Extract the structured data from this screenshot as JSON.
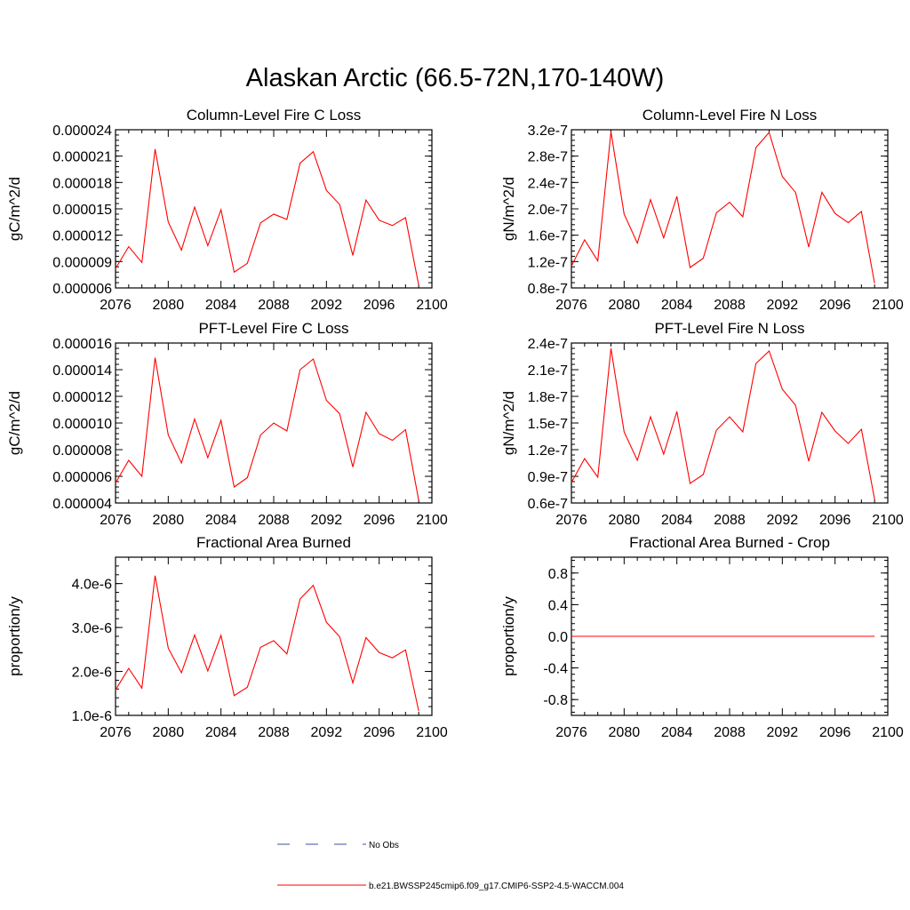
{
  "figure": {
    "title": "Alaskan Arctic (66.5-72N,170-140W)"
  },
  "colors": {
    "model": "#ff0000",
    "obs": "#3b4fa0"
  },
  "legend": {
    "entries": [
      {
        "label": "No Obs",
        "style": "dashed"
      },
      {
        "label": "b.e21.BWSSP245cmip6.f09_g17.CMIP6-SSP2-4.5-WACCM.004",
        "style": "solid"
      }
    ]
  },
  "chart_data": [
    {
      "type": "line",
      "title": "Column-Level Fire C Loss",
      "ylabel": "gC/m^2/d",
      "xlim": [
        2076,
        2100
      ],
      "ylim": [
        6e-06,
        2.4e-05
      ],
      "xticks": [
        "2076",
        "2080",
        "2084",
        "2088",
        "2092",
        "2096",
        "2100"
      ],
      "yticks": [
        6e-06,
        9e-06,
        1.2e-05,
        1.5e-05,
        1.8e-05,
        2.1e-05,
        2.4e-05
      ],
      "yticklabels": [
        "0.000006",
        "0.000009",
        "0.000012",
        "0.000015",
        "0.000018",
        "0.000021",
        "0.000024"
      ],
      "x": [
        2076,
        2077,
        2078,
        2079,
        2080,
        2081,
        2082,
        2083,
        2084,
        2085,
        2086,
        2087,
        2088,
        2089,
        2090,
        2091,
        2092,
        2093,
        2094,
        2095,
        2096,
        2097,
        2098,
        2099
      ],
      "series": [
        {
          "values": [
            8.2e-06,
            1.07e-05,
            8.9e-06,
            2.18e-05,
            1.35e-05,
            1.03e-05,
            1.52e-05,
            1.08e-05,
            1.49e-05,
            7.8e-06,
            8.8e-06,
            1.34e-05,
            1.44e-05,
            1.38e-05,
            2.02e-05,
            2.15e-05,
            1.71e-05,
            1.55e-05,
            9.7e-06,
            1.6e-05,
            1.37e-05,
            1.31e-05,
            1.4e-05,
            6.3e-06
          ]
        }
      ]
    },
    {
      "type": "line",
      "title": "Column-Level Fire N Loss",
      "ylabel": "gN/m^2/d",
      "xlim": [
        2076,
        2100
      ],
      "ylim": [
        8e-08,
        3.2e-07
      ],
      "xticks": [
        "2076",
        "2080",
        "2084",
        "2088",
        "2092",
        "2096",
        "2100"
      ],
      "yticks": [
        8e-08,
        1.2e-07,
        1.6e-07,
        2e-07,
        2.4e-07,
        2.8e-07,
        3.2e-07
      ],
      "yticklabels": [
        "0.8e-7",
        "1.2e-7",
        "1.6e-7",
        "2.0e-7",
        "2.4e-7",
        "2.8e-7",
        "3.2e-7"
      ],
      "x": [
        2076,
        2077,
        2078,
        2079,
        2080,
        2081,
        2082,
        2083,
        2084,
        2085,
        2086,
        2087,
        2088,
        2089,
        2090,
        2091,
        2092,
        2093,
        2094,
        2095,
        2096,
        2097,
        2098,
        2099
      ],
      "series": [
        {
          "values": [
            1.13e-07,
            1.53e-07,
            1.21e-07,
            3.17e-07,
            1.92e-07,
            1.48e-07,
            2.14e-07,
            1.56e-07,
            2.19e-07,
            1.11e-07,
            1.25e-07,
            1.94e-07,
            2.1e-07,
            1.88e-07,
            2.93e-07,
            3.16e-07,
            2.49e-07,
            2.25e-07,
            1.42e-07,
            2.25e-07,
            1.93e-07,
            1.79e-07,
            1.96e-07,
            8.7e-08
          ]
        }
      ]
    },
    {
      "type": "line",
      "title": "PFT-Level Fire C Loss",
      "ylabel": "gC/m^2/d",
      "xlim": [
        2076,
        2100
      ],
      "ylim": [
        4e-06,
        1.6e-05
      ],
      "xticks": [
        "2076",
        "2080",
        "2084",
        "2088",
        "2092",
        "2096",
        "2100"
      ],
      "yticks": [
        4e-06,
        6e-06,
        8e-06,
        1e-05,
        1.2e-05,
        1.4e-05,
        1.6e-05
      ],
      "yticklabels": [
        "0.000004",
        "0.000006",
        "0.000008",
        "0.000010",
        "0.000012",
        "0.000014",
        "0.000016"
      ],
      "x": [
        2076,
        2077,
        2078,
        2079,
        2080,
        2081,
        2082,
        2083,
        2084,
        2085,
        2086,
        2087,
        2088,
        2089,
        2090,
        2091,
        2092,
        2093,
        2094,
        2095,
        2096,
        2097,
        2098,
        2099
      ],
      "series": [
        {
          "values": [
            5.5e-06,
            7.2e-06,
            6e-06,
            1.49e-05,
            9.1e-06,
            7e-06,
            1.03e-05,
            7.4e-06,
            1.02e-05,
            5.2e-06,
            5.9e-06,
            9.1e-06,
            1e-05,
            9.4e-06,
            1.4e-05,
            1.48e-05,
            1.17e-05,
            1.07e-05,
            6.7e-06,
            1.08e-05,
            9.2e-06,
            8.7e-06,
            9.5e-06,
            4.2e-06
          ]
        }
      ]
    },
    {
      "type": "line",
      "title": "PFT-Level Fire N Loss",
      "ylabel": "gN/m^2/d",
      "xlim": [
        2076,
        2100
      ],
      "ylim": [
        6e-08,
        2.4e-07
      ],
      "xticks": [
        "2076",
        "2080",
        "2084",
        "2088",
        "2092",
        "2096",
        "2100"
      ],
      "yticks": [
        6e-08,
        9e-08,
        1.2e-07,
        1.5e-07,
        1.8e-07,
        2.1e-07,
        2.4e-07
      ],
      "yticklabels": [
        "0.6e-7",
        "0.9e-7",
        "1.2e-7",
        "1.5e-7",
        "1.8e-7",
        "2.1e-7",
        "2.4e-7"
      ],
      "x": [
        2076,
        2077,
        2078,
        2079,
        2080,
        2081,
        2082,
        2083,
        2084,
        2085,
        2086,
        2087,
        2088,
        2089,
        2090,
        2091,
        2092,
        2093,
        2094,
        2095,
        2096,
        2097,
        2098,
        2099
      ],
      "series": [
        {
          "values": [
            8.3e-08,
            1.1e-07,
            8.9e-08,
            2.34e-07,
            1.4e-07,
            1.08e-07,
            1.57e-07,
            1.15e-07,
            1.63e-07,
            8.2e-08,
            9.2e-08,
            1.42e-07,
            1.57e-07,
            1.4e-07,
            2.17e-07,
            2.31e-07,
            1.88e-07,
            1.7e-07,
            1.07e-07,
            1.62e-07,
            1.41e-07,
            1.27e-07,
            1.43e-07,
            6.4e-08
          ]
        }
      ]
    },
    {
      "type": "line",
      "title": "Fractional Area Burned",
      "ylabel": "proportion/y",
      "xlim": [
        2076,
        2100
      ],
      "ylim": [
        1e-06,
        4.6e-06
      ],
      "xticks": [
        "2076",
        "2080",
        "2084",
        "2088",
        "2092",
        "2096",
        "2100"
      ],
      "yticks": [
        1e-06,
        2e-06,
        3e-06,
        4e-06
      ],
      "yticklabels": [
        "1.0e-6",
        "2.0e-6",
        "3.0e-6",
        "4.0e-6"
      ],
      "x": [
        2076,
        2077,
        2078,
        2079,
        2080,
        2081,
        2082,
        2083,
        2084,
        2085,
        2086,
        2087,
        2088,
        2089,
        2090,
        2091,
        2092,
        2093,
        2094,
        2095,
        2096,
        2097,
        2098,
        2099
      ],
      "series": [
        {
          "values": [
            1.58e-06,
            2.07e-06,
            1.62e-06,
            4.18e-06,
            2.53e-06,
            1.97e-06,
            2.83e-06,
            2.01e-06,
            2.82e-06,
            1.45e-06,
            1.64e-06,
            2.55e-06,
            2.7e-06,
            2.4e-06,
            3.65e-06,
            3.96e-06,
            3.12e-06,
            2.79e-06,
            1.74e-06,
            2.77e-06,
            2.43e-06,
            2.31e-06,
            2.49e-06,
            1.1e-06
          ]
        }
      ]
    },
    {
      "type": "line",
      "title": "Fractional Area Burned - Crop",
      "ylabel": "proportion/y",
      "xlim": [
        2076,
        2100
      ],
      "ylim": [
        -1.0,
        1.0
      ],
      "xticks": [
        "2076",
        "2080",
        "2084",
        "2088",
        "2092",
        "2096",
        "2100"
      ],
      "yticks": [
        -0.8,
        -0.4,
        0.0,
        0.4,
        0.8
      ],
      "yticklabels": [
        "-0.8",
        "-0.4",
        "0.0",
        "0.4",
        "0.8"
      ],
      "x": [
        2076,
        2077,
        2078,
        2079,
        2080,
        2081,
        2082,
        2083,
        2084,
        2085,
        2086,
        2087,
        2088,
        2089,
        2090,
        2091,
        2092,
        2093,
        2094,
        2095,
        2096,
        2097,
        2098,
        2099
      ],
      "series": [
        {
          "values": [
            0,
            0,
            0,
            0,
            0,
            0,
            0,
            0,
            0,
            0,
            0,
            0,
            0,
            0,
            0,
            0,
            0,
            0,
            0,
            0,
            0,
            0,
            0,
            0
          ]
        }
      ]
    }
  ]
}
